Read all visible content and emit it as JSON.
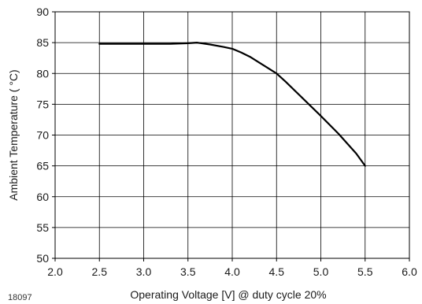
{
  "figure_id": "18097",
  "chart_data": {
    "type": "line",
    "title": "",
    "xlabel": "Operating  Voltage [V] @ duty cycle 20%",
    "ylabel": "Ambient  Temperature  ( °C)",
    "xlim": [
      2.0,
      6.0
    ],
    "ylim": [
      50,
      90
    ],
    "xticks": [
      2.0,
      2.5,
      3.0,
      3.5,
      4.0,
      4.5,
      5.0,
      5.5,
      6.0
    ],
    "yticks": [
      50,
      55,
      60,
      65,
      70,
      75,
      80,
      85,
      90
    ],
    "xtick_labels": [
      "2.0",
      "2.5",
      "3.0",
      "3.5",
      "4.0",
      "4.5",
      "5.0",
      "5.5",
      "6.0"
    ],
    "ytick_labels": [
      "50",
      "55",
      "60",
      "65",
      "70",
      "75",
      "80",
      "85",
      "90"
    ],
    "grid": true,
    "series": [
      {
        "x": [
          2.5,
          3.0,
          3.3,
          3.5,
          3.6,
          3.75,
          3.9,
          4.0,
          4.1,
          4.2,
          4.3,
          4.4,
          4.5,
          4.6,
          4.8,
          5.0,
          5.2,
          5.4,
          5.5
        ],
        "y": [
          84.8,
          84.8,
          84.8,
          84.9,
          85.0,
          84.7,
          84.3,
          84.0,
          83.4,
          82.7,
          81.8,
          80.9,
          80.0,
          78.7,
          75.9,
          73.1,
          70.2,
          67.0,
          65.0
        ],
        "color": "#000000"
      }
    ]
  }
}
